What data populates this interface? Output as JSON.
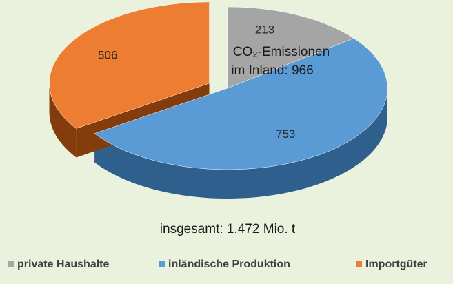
{
  "chart_data": {
    "type": "pie",
    "categories": [
      "private Haushalte",
      "inländische Produktion",
      "Importgüter"
    ],
    "values": [
      213,
      753,
      506
    ],
    "colors": [
      "#a5a5a5",
      "#5b9bd5",
      "#ed7d31"
    ],
    "side_colors": [
      "#7a7a7a",
      "#2f5f8c",
      "#843c0c"
    ],
    "annotation": [
      "CO₂-Emissionen",
      "im Inland: 966"
    ],
    "total_label": "insgesamt: 1.472 Mio. t",
    "legend": "bottom"
  }
}
